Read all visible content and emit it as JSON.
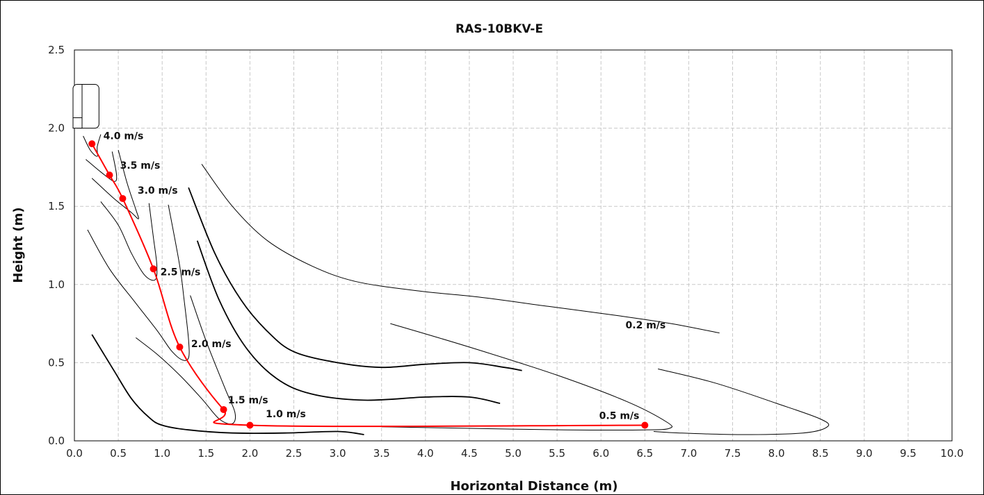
{
  "chart_data": {
    "type": "line",
    "title": "RAS-10BKV-E",
    "xlabel": "Horizontal Distance (m)",
    "ylabel": "Height (m)",
    "xlim": [
      0.0,
      10.0
    ],
    "ylim": [
      0.0,
      2.5
    ],
    "x_ticks": [
      "0.0",
      "0.5",
      "1.0",
      "1.5",
      "2.0",
      "2.5",
      "3.0",
      "3.5",
      "4.0",
      "4.5",
      "5.0",
      "5.5",
      "6.0",
      "6.5",
      "7.0",
      "7.5",
      "8.0",
      "8.5",
      "9.0",
      "9.5",
      "10.0"
    ],
    "y_ticks": [
      "0.0",
      "0.5",
      "1.0",
      "1.5",
      "2.0",
      "2.5"
    ],
    "grid": true,
    "colors": {
      "trajectory": "#ff0000",
      "contour": "#000000",
      "grid": "#c8c8c8"
    },
    "trajectory": {
      "points": [
        {
          "x": 0.2,
          "y": 1.9
        },
        {
          "x": 0.4,
          "y": 1.7
        },
        {
          "x": 0.55,
          "y": 1.55
        },
        {
          "x": 0.9,
          "y": 1.1
        },
        {
          "x": 1.2,
          "y": 0.6
        },
        {
          "x": 1.7,
          "y": 0.2
        },
        {
          "x": 2.0,
          "y": 0.1
        },
        {
          "x": 6.5,
          "y": 0.1
        }
      ]
    },
    "velocity_contours": [
      {
        "label": "4.0 m/s",
        "points": [
          [
            0.1,
            1.95
          ],
          [
            0.18,
            1.86
          ],
          [
            0.26,
            1.82
          ],
          [
            0.26,
            1.88
          ],
          [
            0.3,
            1.96
          ]
        ]
      },
      {
        "label": "3.5 m/s",
        "points": [
          [
            0.13,
            1.8
          ],
          [
            0.3,
            1.72
          ],
          [
            0.45,
            1.66
          ],
          [
            0.48,
            1.7
          ],
          [
            0.43,
            1.85
          ]
        ]
      },
      {
        "label": "3.0 m/s",
        "points": [
          [
            0.2,
            1.68
          ],
          [
            0.45,
            1.55
          ],
          [
            0.65,
            1.46
          ],
          [
            0.73,
            1.42
          ],
          [
            0.7,
            1.48
          ],
          [
            0.6,
            1.65
          ],
          [
            0.5,
            1.86
          ]
        ]
      },
      {
        "label": "2.5 m/s",
        "points": [
          [
            0.3,
            1.53
          ],
          [
            0.5,
            1.38
          ],
          [
            0.65,
            1.2
          ],
          [
            0.8,
            1.06
          ],
          [
            0.92,
            1.03
          ],
          [
            0.94,
            1.12
          ],
          [
            0.9,
            1.3
          ],
          [
            0.85,
            1.52
          ]
        ]
      },
      {
        "label": "2.0 m/s",
        "points": [
          [
            0.15,
            1.35
          ],
          [
            0.4,
            1.1
          ],
          [
            0.7,
            0.88
          ],
          [
            0.95,
            0.7
          ],
          [
            1.1,
            0.58
          ],
          [
            1.22,
            0.52
          ],
          [
            1.3,
            0.53
          ],
          [
            1.3,
            0.65
          ],
          [
            1.25,
            0.9
          ],
          [
            1.2,
            1.12
          ],
          [
            1.07,
            1.51
          ]
        ]
      },
      {
        "label": "1.5 m/s",
        "points": [
          [
            0.7,
            0.66
          ],
          [
            0.95,
            0.55
          ],
          [
            1.2,
            0.42
          ],
          [
            1.45,
            0.27
          ],
          [
            1.65,
            0.14
          ],
          [
            1.8,
            0.11
          ],
          [
            1.83,
            0.18
          ],
          [
            1.72,
            0.33
          ],
          [
            1.5,
            0.64
          ],
          [
            1.32,
            0.93
          ]
        ]
      },
      {
        "label": "1.0 m/s",
        "points": [
          [
            0.2,
            0.68
          ],
          [
            0.45,
            0.45
          ],
          [
            0.65,
            0.27
          ],
          [
            0.85,
            0.15
          ],
          [
            1.0,
            0.1
          ],
          [
            1.3,
            0.07
          ],
          [
            1.8,
            0.05
          ],
          [
            2.4,
            0.05
          ],
          [
            3.0,
            0.06
          ],
          [
            3.3,
            0.04
          ]
        ]
      },
      {
        "label": "",
        "points": [
          [
            1.4,
            1.28
          ],
          [
            1.65,
            0.9
          ],
          [
            1.95,
            0.6
          ],
          [
            2.3,
            0.4
          ],
          [
            2.7,
            0.3
          ],
          [
            3.3,
            0.26
          ],
          [
            4.0,
            0.28
          ],
          [
            4.5,
            0.28
          ],
          [
            4.85,
            0.24
          ]
        ]
      },
      {
        "label": "",
        "points": [
          [
            1.3,
            1.62
          ],
          [
            1.6,
            1.2
          ],
          [
            1.9,
            0.9
          ],
          [
            2.2,
            0.7
          ],
          [
            2.5,
            0.57
          ],
          [
            3.0,
            0.5
          ],
          [
            3.5,
            0.47
          ],
          [
            4.0,
            0.49
          ],
          [
            4.5,
            0.5
          ],
          [
            4.9,
            0.47
          ],
          [
            5.1,
            0.45
          ]
        ]
      },
      {
        "label": "0.5 m/s",
        "points": [
          [
            3.6,
            0.75
          ],
          [
            4.5,
            0.6
          ],
          [
            5.5,
            0.42
          ],
          [
            6.3,
            0.25
          ],
          [
            6.75,
            0.12
          ],
          [
            6.78,
            0.08
          ],
          [
            6.5,
            0.07
          ],
          [
            5.6,
            0.07
          ],
          [
            4.5,
            0.08
          ],
          [
            3.5,
            0.09
          ]
        ]
      },
      {
        "label": "0.2 m/s",
        "points": [
          [
            1.45,
            1.77
          ],
          [
            1.8,
            1.5
          ],
          [
            2.2,
            1.28
          ],
          [
            2.7,
            1.12
          ],
          [
            3.2,
            1.02
          ],
          [
            3.9,
            0.96
          ],
          [
            4.6,
            0.92
          ],
          [
            5.4,
            0.86
          ],
          [
            6.2,
            0.8
          ],
          [
            6.8,
            0.75
          ],
          [
            7.35,
            0.69
          ]
        ]
      },
      {
        "label": "",
        "points": [
          [
            6.65,
            0.46
          ],
          [
            7.3,
            0.37
          ],
          [
            8.0,
            0.24
          ],
          [
            8.5,
            0.14
          ],
          [
            8.58,
            0.09
          ],
          [
            8.3,
            0.05
          ],
          [
            7.6,
            0.04
          ],
          [
            6.9,
            0.05
          ],
          [
            6.6,
            0.06
          ]
        ]
      }
    ],
    "labels": [
      {
        "text": "4.0 m/s",
        "x": 0.33,
        "y": 1.93
      },
      {
        "text": "3.5 m/s",
        "x": 0.52,
        "y": 1.74
      },
      {
        "text": "3.0 m/s",
        "x": 0.72,
        "y": 1.58
      },
      {
        "text": "2.5 m/s",
        "x": 0.98,
        "y": 1.06
      },
      {
        "text": "2.0 m/s",
        "x": 1.33,
        "y": 0.6
      },
      {
        "text": "1.5 m/s",
        "x": 1.75,
        "y": 0.24
      },
      {
        "text": "1.0 m/s",
        "x": 2.18,
        "y": 0.15
      },
      {
        "text": "0.5 m/s",
        "x": 5.98,
        "y": 0.14
      },
      {
        "text": "0.2 m/s",
        "x": 6.28,
        "y": 0.72
      }
    ],
    "unit_marker": {
      "x": 0.0,
      "y": 2.0,
      "x2": 0.28,
      "y2": 2.28
    }
  }
}
